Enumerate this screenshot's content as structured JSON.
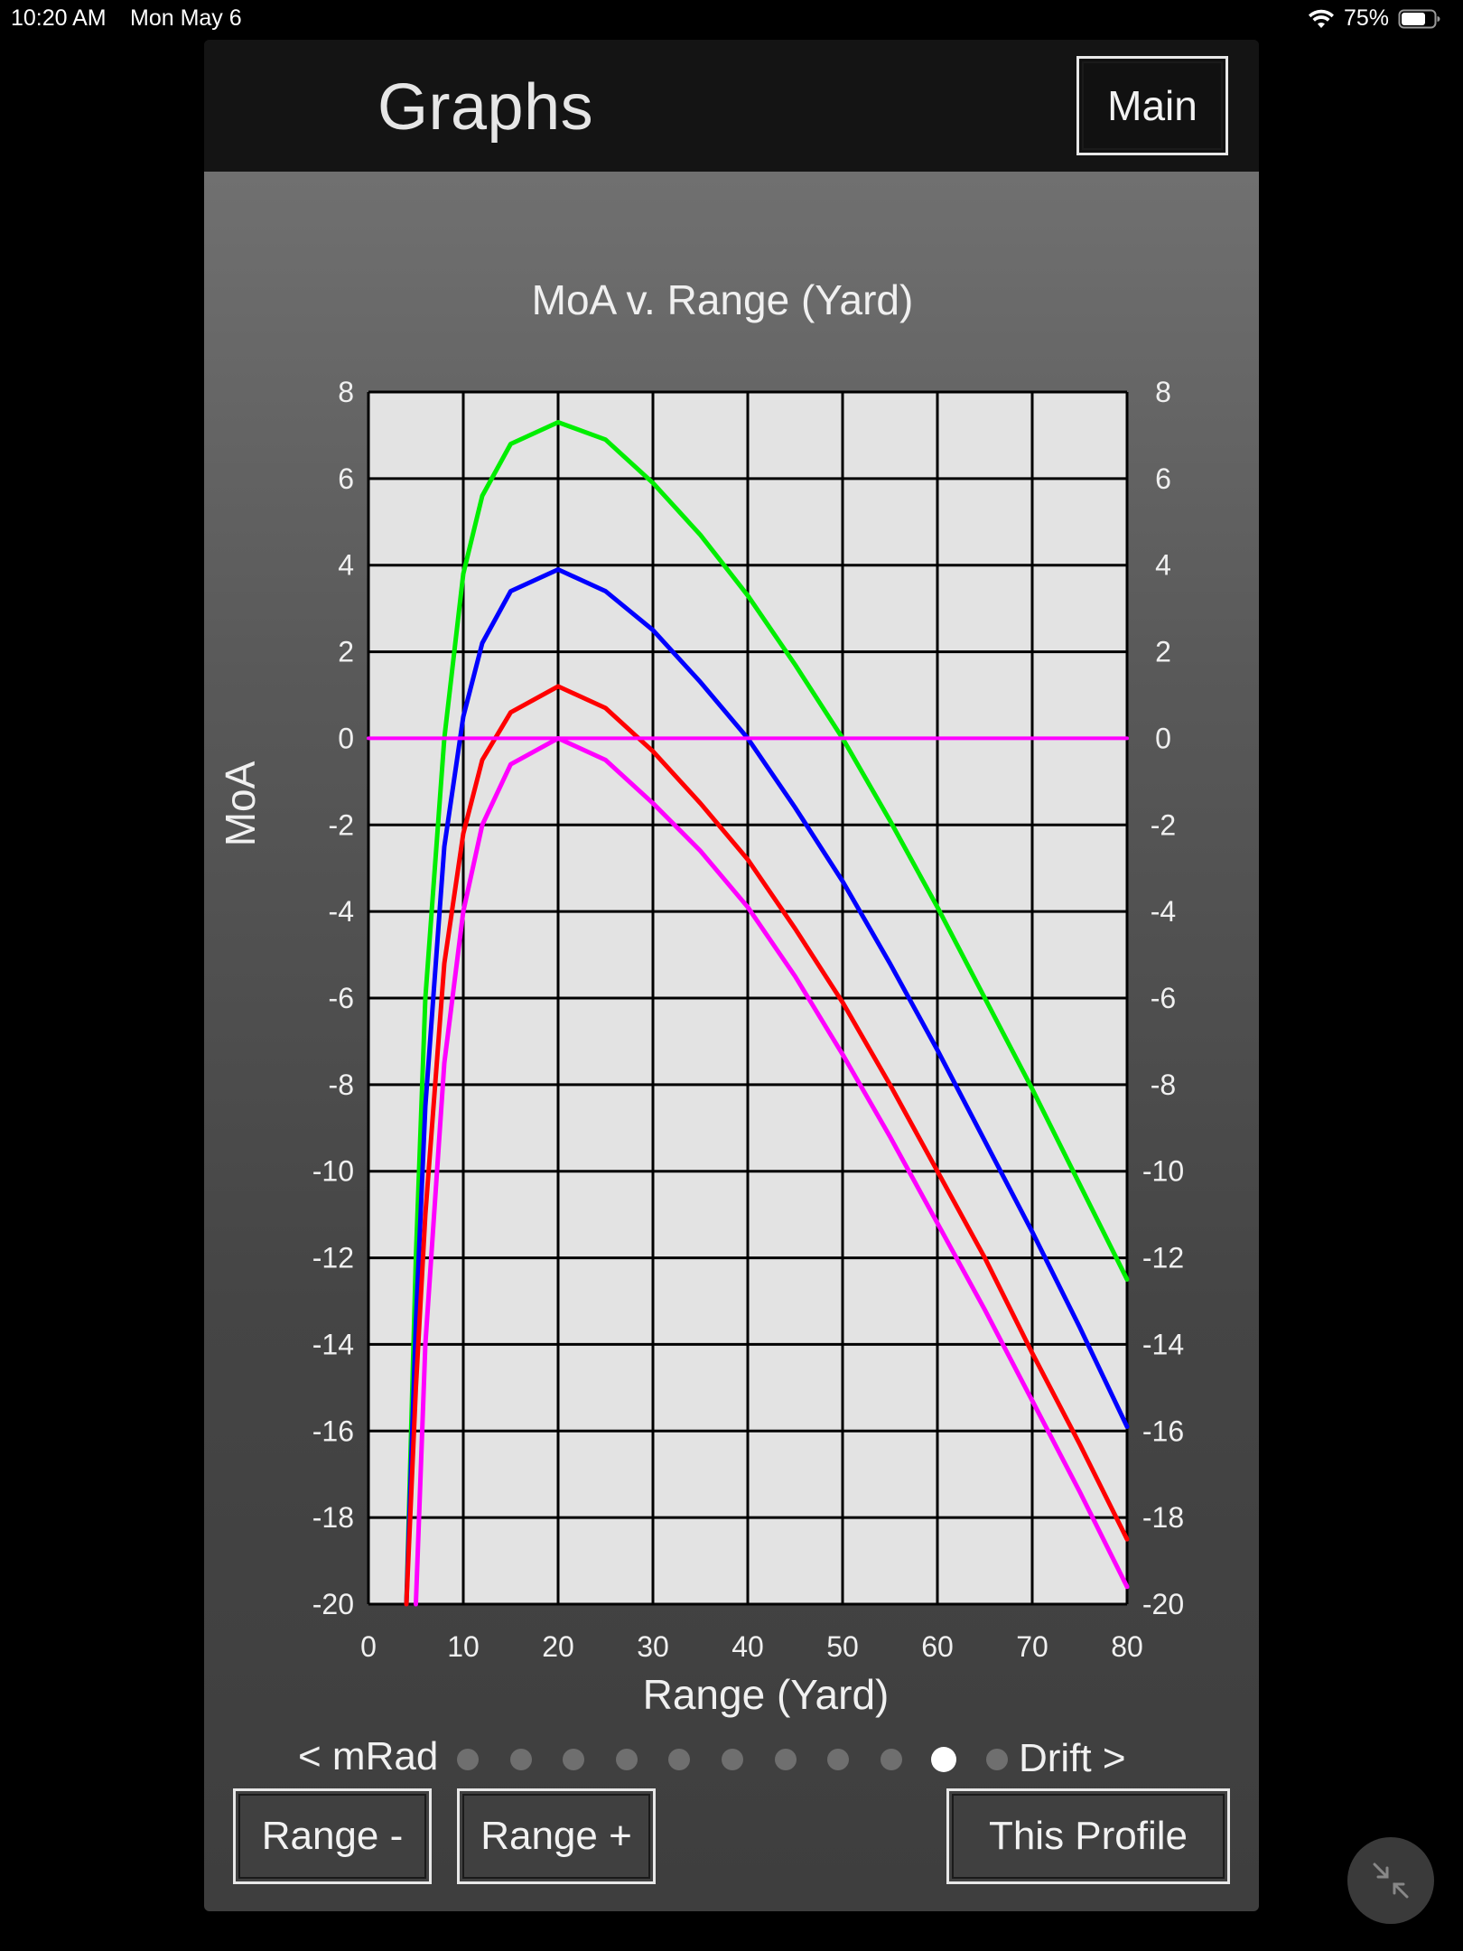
{
  "status_bar": {
    "time": "10:20 AM",
    "date": "Mon May 6",
    "battery_text": "75%",
    "battery_level": 0.75
  },
  "header": {
    "title": "Graphs",
    "main_button": "Main"
  },
  "chart_data": {
    "type": "line",
    "title": "MoA v. Range (Yard)",
    "xlabel": "Range (Yard)",
    "ylabel": "MoA",
    "xlim": [
      0,
      80
    ],
    "ylim": [
      -20,
      8
    ],
    "x_ticks": [
      "0",
      "10",
      "20",
      "30",
      "40",
      "50",
      "60",
      "70",
      "80"
    ],
    "y_ticks": [
      "8",
      "6",
      "4",
      "2",
      "0",
      "-2",
      "-4",
      "-6",
      "-8",
      "-10",
      "-12",
      "-14",
      "-16",
      "-18",
      "-20"
    ],
    "grid": true,
    "series": [
      {
        "color": "#00ee00",
        "points": [
          [
            4,
            -20
          ],
          [
            5,
            -12
          ],
          [
            6,
            -6
          ],
          [
            8,
            0
          ],
          [
            10,
            3.8
          ],
          [
            12,
            5.6
          ],
          [
            15,
            6.8
          ],
          [
            20,
            7.3
          ],
          [
            25,
            6.9
          ],
          [
            30,
            5.9
          ],
          [
            35,
            4.7
          ],
          [
            40,
            3.3
          ],
          [
            45,
            1.7
          ],
          [
            50,
            0
          ],
          [
            55,
            -1.9
          ],
          [
            60,
            -3.9
          ],
          [
            65,
            -6.0
          ],
          [
            70,
            -8.1
          ],
          [
            75,
            -10.3
          ],
          [
            80,
            -12.5
          ]
        ]
      },
      {
        "color": "#0000ff",
        "points": [
          [
            4,
            -20
          ],
          [
            5,
            -13.5
          ],
          [
            6,
            -8.5
          ],
          [
            8,
            -2.5
          ],
          [
            10,
            0.5
          ],
          [
            12,
            2.2
          ],
          [
            15,
            3.4
          ],
          [
            20,
            3.9
          ],
          [
            25,
            3.4
          ],
          [
            30,
            2.5
          ],
          [
            35,
            1.3
          ],
          [
            40,
            0
          ],
          [
            45,
            -1.6
          ],
          [
            50,
            -3.3
          ],
          [
            55,
            -5.2
          ],
          [
            60,
            -7.2
          ],
          [
            65,
            -9.3
          ],
          [
            70,
            -11.4
          ],
          [
            75,
            -13.6
          ],
          [
            80,
            -15.9
          ]
        ]
      },
      {
        "color": "#ff0000",
        "points": [
          [
            4,
            -20
          ],
          [
            5,
            -15
          ],
          [
            6,
            -11
          ],
          [
            8,
            -5.2
          ],
          [
            10,
            -2.2
          ],
          [
            12,
            -0.5
          ],
          [
            15,
            0.6
          ],
          [
            20,
            1.2
          ],
          [
            25,
            0.7
          ],
          [
            30,
            -0.3
          ],
          [
            35,
            -1.5
          ],
          [
            40,
            -2.8
          ],
          [
            45,
            -4.4
          ],
          [
            50,
            -6.1
          ],
          [
            55,
            -8.0
          ],
          [
            60,
            -10.0
          ],
          [
            65,
            -12.0
          ],
          [
            70,
            -14.2
          ],
          [
            75,
            -16.3
          ],
          [
            80,
            -18.5
          ]
        ]
      },
      {
        "color": "#ff00ff",
        "points": [
          [
            5,
            -20
          ],
          [
            6,
            -14
          ],
          [
            8,
            -7.5
          ],
          [
            10,
            -4.0
          ],
          [
            12,
            -2.0
          ],
          [
            15,
            -0.6
          ],
          [
            20,
            0
          ],
          [
            25,
            -0.5
          ],
          [
            30,
            -1.5
          ],
          [
            35,
            -2.6
          ],
          [
            40,
            -3.9
          ],
          [
            45,
            -5.5
          ],
          [
            50,
            -7.3
          ],
          [
            55,
            -9.2
          ],
          [
            60,
            -11.2
          ],
          [
            65,
            -13.2
          ],
          [
            70,
            -15.3
          ],
          [
            75,
            -17.4
          ],
          [
            80,
            -19.6
          ]
        ]
      },
      {
        "color": "#ff00ff",
        "points": [
          [
            0,
            0
          ],
          [
            80,
            0
          ]
        ]
      }
    ]
  },
  "pager": {
    "prev_label": "< mRad",
    "next_label": "Drift >",
    "page_count": 11,
    "active_index": 9
  },
  "footer": {
    "range_minus": "Range -",
    "range_plus": "Range +",
    "this_profile": "This Profile"
  },
  "colors": {
    "plot_background": "#e3e3e3",
    "grid_line": "#000000",
    "header_background": "#141414"
  },
  "icons": {
    "wifi": "wifi-icon",
    "battery": "battery-icon",
    "shrink": "shrink-arrows-icon"
  }
}
